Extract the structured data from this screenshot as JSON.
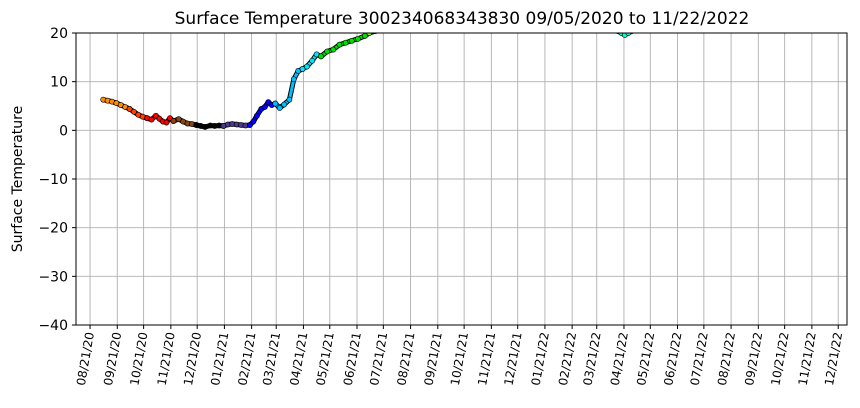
{
  "chart_data": {
    "type": "scatter",
    "title": "Surface Temperature 300234068343830  09/05/2020 to 11/22/2022",
    "xlabel": "",
    "ylabel": "Surface Temperature",
    "ylim": [
      -40,
      20
    ],
    "yticks": [
      "20",
      "10",
      "0",
      "−10",
      "−20",
      "−30",
      "−40"
    ],
    "ytick_values": [
      20,
      10,
      0,
      -10,
      -20,
      -30,
      -40
    ],
    "xlim": [
      "2020-08-05",
      "2022-12-31"
    ],
    "xticks": [
      "08/21/20",
      "09/21/20",
      "10/21/20",
      "11/21/20",
      "12/21/20",
      "01/21/21",
      "02/21/21",
      "03/21/21",
      "04/21/21",
      "05/21/21",
      "06/21/21",
      "07/21/21",
      "08/21/21",
      "09/21/21",
      "10/21/21",
      "11/21/21",
      "12/21/21",
      "01/21/22",
      "02/21/22",
      "03/21/22",
      "04/21/22",
      "05/21/22",
      "06/21/22",
      "07/21/22",
      "08/21/22",
      "09/21/22",
      "10/21/22",
      "11/21/22",
      "12/21/22"
    ],
    "xtick_dates": [
      "2020-08-21",
      "2020-09-21",
      "2020-10-21",
      "2020-11-21",
      "2020-12-21",
      "2021-01-21",
      "2021-02-21",
      "2021-03-21",
      "2021-04-21",
      "2021-05-21",
      "2021-06-21",
      "2021-07-21",
      "2021-08-21",
      "2021-09-21",
      "2021-10-21",
      "2021-11-21",
      "2021-12-21",
      "2022-01-21",
      "2022-02-21",
      "2022-03-21",
      "2022-04-21",
      "2022-05-21",
      "2022-06-21",
      "2022-07-21",
      "2022-08-21",
      "2022-09-21",
      "2022-10-21",
      "2022-11-21",
      "2022-12-21"
    ],
    "grid": true,
    "series": [
      {
        "color": "#ff8c00",
        "points": [
          [
            "2020-09-05",
            6.3
          ],
          [
            "2020-09-10",
            6.1
          ],
          [
            "2020-09-15",
            5.9
          ],
          [
            "2020-09-20",
            5.6
          ],
          [
            "2020-09-25",
            5.2
          ],
          [
            "2020-09-30",
            4.8
          ],
          [
            "2020-10-05",
            4.4
          ]
        ]
      },
      {
        "color": "#ff4000",
        "points": [
          [
            "2020-10-05",
            4.4
          ],
          [
            "2020-10-10",
            3.8
          ],
          [
            "2020-10-15",
            3.2
          ],
          [
            "2020-10-20",
            2.8
          ],
          [
            "2020-10-25",
            2.5
          ]
        ]
      },
      {
        "color": "#ff0000",
        "points": [
          [
            "2020-10-25",
            2.5
          ],
          [
            "2020-10-30",
            2.2
          ],
          [
            "2020-11-04",
            3.0
          ],
          [
            "2020-11-08",
            2.4
          ],
          [
            "2020-11-12",
            1.8
          ],
          [
            "2020-11-16",
            1.6
          ],
          [
            "2020-11-20",
            2.5
          ],
          [
            "2020-11-24",
            1.9
          ]
        ]
      },
      {
        "color": "#8b4513",
        "points": [
          [
            "2020-11-24",
            1.9
          ],
          [
            "2020-11-30",
            2.3
          ],
          [
            "2020-12-05",
            1.8
          ],
          [
            "2020-12-10",
            1.4
          ],
          [
            "2020-12-15",
            1.3
          ],
          [
            "2020-12-20",
            1.1
          ]
        ]
      },
      {
        "color": "#000000",
        "points": [
          [
            "2020-12-20",
            1.1
          ],
          [
            "2020-12-25",
            0.9
          ],
          [
            "2020-12-30",
            0.7
          ],
          [
            "2021-01-05",
            1.0
          ],
          [
            "2021-01-10",
            0.9
          ],
          [
            "2021-01-15",
            1.0
          ],
          [
            "2021-01-20",
            0.9
          ]
        ]
      },
      {
        "color": "#4b3a8c",
        "points": [
          [
            "2021-01-20",
            0.9
          ],
          [
            "2021-01-25",
            1.2
          ],
          [
            "2021-01-30",
            1.3
          ],
          [
            "2021-02-04",
            1.2
          ],
          [
            "2021-02-09",
            1.1
          ],
          [
            "2021-02-14",
            1.0
          ],
          [
            "2021-02-19",
            1.1
          ]
        ]
      },
      {
        "color": "#0000ff",
        "points": [
          [
            "2021-02-19",
            1.1
          ],
          [
            "2021-02-23",
            1.8
          ],
          [
            "2021-02-27",
            3.0
          ],
          [
            "2021-03-04",
            4.4
          ],
          [
            "2021-03-08",
            4.8
          ],
          [
            "2021-03-12",
            5.8
          ],
          [
            "2021-03-16",
            5.2
          ],
          [
            "2021-03-20",
            5.5
          ]
        ]
      },
      {
        "color": "#00bfff",
        "points": [
          [
            "2021-03-20",
            5.5
          ],
          [
            "2021-03-25",
            4.6
          ],
          [
            "2021-03-30",
            5.3
          ],
          [
            "2021-04-05",
            6.3
          ],
          [
            "2021-04-10",
            10.5
          ],
          [
            "2021-04-15",
            12.2
          ],
          [
            "2021-04-20",
            12.6
          ]
        ]
      },
      {
        "color": "#00e5ff",
        "points": [
          [
            "2021-04-20",
            12.6
          ],
          [
            "2021-04-25",
            13.1
          ],
          [
            "2021-05-01",
            14.3
          ],
          [
            "2021-05-06",
            15.6
          ],
          [
            "2021-05-11",
            15.2
          ]
        ]
      },
      {
        "color": "#00e000",
        "points": [
          [
            "2021-05-11",
            15.2
          ],
          [
            "2021-05-18",
            16.2
          ],
          [
            "2021-05-25",
            16.6
          ],
          [
            "2021-06-01",
            17.6
          ],
          [
            "2021-06-08",
            18.0
          ],
          [
            "2021-06-15",
            18.4
          ],
          [
            "2021-06-22",
            18.8
          ],
          [
            "2021-06-30",
            19.4
          ],
          [
            "2021-07-05",
            20.0
          ]
        ]
      },
      {
        "color": "#7fff00",
        "points": [
          [
            "2021-07-05",
            20.0
          ],
          [
            "2021-07-12",
            20.4
          ]
        ]
      },
      {
        "color": "#00ffd0",
        "points": [
          [
            "2022-04-14",
            20.4
          ],
          [
            "2022-04-18",
            20.0
          ],
          [
            "2022-04-22",
            19.6
          ],
          [
            "2022-04-26",
            20.0
          ],
          [
            "2022-04-30",
            20.4
          ]
        ]
      }
    ]
  }
}
